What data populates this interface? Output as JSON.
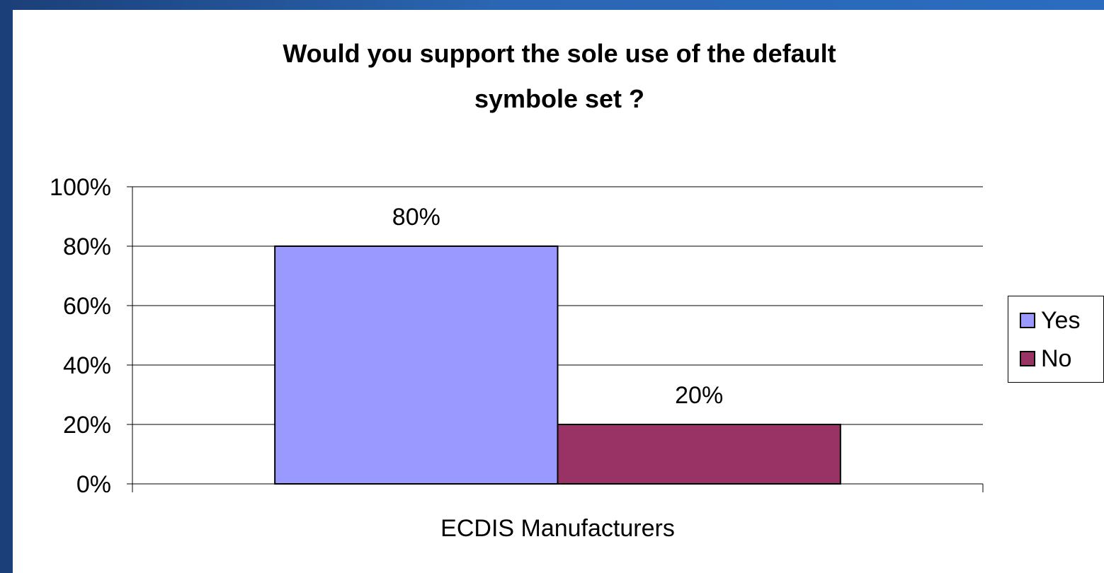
{
  "chart_data": {
    "type": "bar",
    "title": "Would you support the sole use of the default symbole set ?",
    "title_lines": [
      "Would you support the sole use of the default",
      "symbole set ?"
    ],
    "categories": [
      "ECDIS Manufacturers"
    ],
    "series": [
      {
        "name": "Yes",
        "values": [
          80
        ],
        "label": "80%",
        "color": "#9999ff"
      },
      {
        "name": "No",
        "values": [
          20
        ],
        "label": "20%",
        "color": "#993366"
      }
    ],
    "xlabel": "",
    "ylabel": "",
    "ylim": [
      0,
      100
    ],
    "yticks": [
      "0%",
      "20%",
      "40%",
      "60%",
      "80%",
      "100%"
    ],
    "grid": true,
    "legend_position": "right"
  },
  "colors": {
    "background": "#2b6cbf",
    "panel": "#ffffff",
    "text": "#000000"
  }
}
